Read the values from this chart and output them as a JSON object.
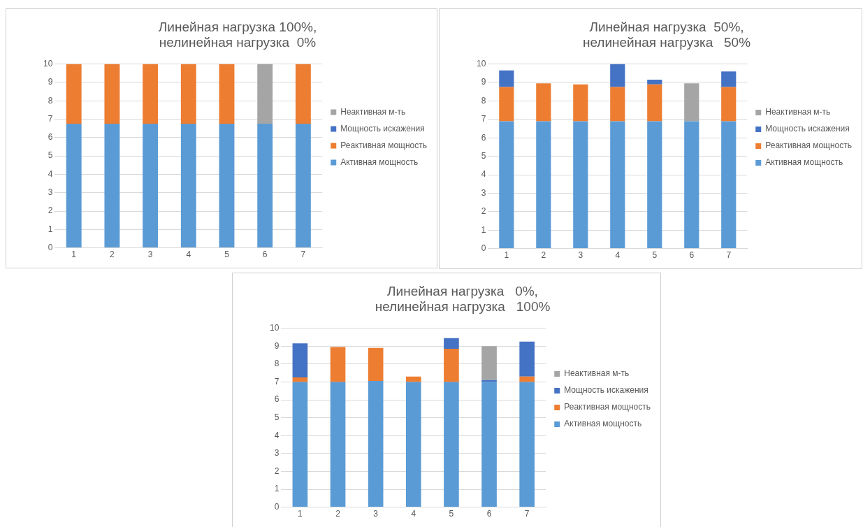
{
  "chart_data": [
    {
      "type": "bar",
      "stacked": true,
      "title": "Линейная нагрузка 100%,\nнелинейная нагрузка  0%",
      "categories": [
        "1",
        "2",
        "3",
        "4",
        "5",
        "6",
        "7"
      ],
      "ylim": [
        0,
        10
      ],
      "yticks": [
        0,
        1,
        2,
        3,
        4,
        5,
        6,
        7,
        8,
        9,
        10
      ],
      "grid": "y",
      "legend": "right",
      "series": [
        {
          "name": "Активная мощность",
          "color": "#5b9bd5",
          "values": [
            6.75,
            6.75,
            6.75,
            6.75,
            6.75,
            6.75,
            6.75
          ]
        },
        {
          "name": "Реактивная мощность",
          "color": "#ed7d31",
          "values": [
            3.25,
            3.25,
            3.25,
            3.25,
            3.25,
            null,
            3.25
          ]
        },
        {
          "name": "Мощность искажения",
          "color": "#4472c4",
          "values": [
            null,
            null,
            null,
            null,
            null,
            null,
            null
          ]
        },
        {
          "name": "Неактивная м-ть",
          "color": "#a5a5a5",
          "values": [
            null,
            null,
            null,
            null,
            null,
            3.25,
            null
          ]
        }
      ]
    },
    {
      "type": "bar",
      "stacked": true,
      "title": "Линейная нагрузка  50%,\nнелинейная нагрузка   50%",
      "categories": [
        "1",
        "2",
        "3",
        "4",
        "5",
        "6",
        "7"
      ],
      "ylim": [
        0,
        10
      ],
      "yticks": [
        0,
        1,
        2,
        3,
        4,
        5,
        6,
        7,
        8,
        9,
        10
      ],
      "grid": "y",
      "legend": "right",
      "series": [
        {
          "name": "Активная мощность",
          "color": "#5b9bd5",
          "values": [
            6.9,
            6.9,
            6.9,
            6.9,
            6.9,
            6.9,
            6.9
          ]
        },
        {
          "name": "Реактивная мощность",
          "color": "#ed7d31",
          "values": [
            1.85,
            2.05,
            2.0,
            1.85,
            2.0,
            null,
            1.85
          ]
        },
        {
          "name": "Мощность искажения",
          "color": "#4472c4",
          "values": [
            0.9,
            null,
            null,
            1.25,
            0.25,
            null,
            0.85
          ]
        },
        {
          "name": "Неактивная м-ть",
          "color": "#a5a5a5",
          "values": [
            null,
            null,
            null,
            null,
            null,
            2.05,
            null
          ]
        }
      ]
    },
    {
      "type": "bar",
      "stacked": true,
      "title": "Линейная нагрузка   0%,\nнелинейная нагрузка   100%",
      "categories": [
        "1",
        "2",
        "3",
        "4",
        "5",
        "6",
        "7"
      ],
      "ylim": [
        0,
        10
      ],
      "yticks": [
        0,
        1,
        2,
        3,
        4,
        5,
        6,
        7,
        8,
        9,
        10
      ],
      "grid": "y",
      "legend": "right",
      "series": [
        {
          "name": "Активная мощность",
          "color": "#5b9bd5",
          "values": [
            7.0,
            7.0,
            7.05,
            7.0,
            7.0,
            7.0,
            7.0
          ]
        },
        {
          "name": "Реактивная мощность",
          "color": "#ed7d31",
          "values": [
            0.25,
            1.95,
            1.85,
            0.3,
            1.85,
            null,
            0.3
          ]
        },
        {
          "name": "Мощность искажения",
          "color": "#4472c4",
          "values": [
            1.9,
            null,
            null,
            null,
            0.6,
            0.1,
            1.95
          ]
        },
        {
          "name": "Неактивная м-ть",
          "color": "#a5a5a5",
          "values": [
            null,
            null,
            null,
            null,
            null,
            1.9,
            null
          ]
        }
      ]
    }
  ]
}
